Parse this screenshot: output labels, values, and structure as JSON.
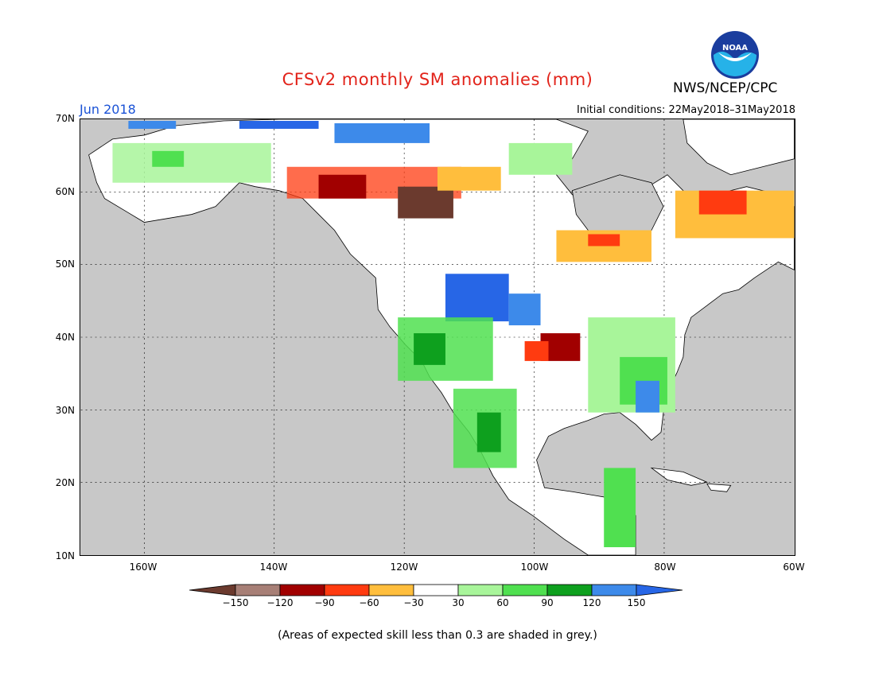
{
  "header": {
    "title": "CFSv2 monthly SM anomalies (mm)",
    "month": "Jun 2018",
    "initial_conditions": "Initial conditions: 22May2018–31May2018",
    "agency": "NWS/NCEP/CPC",
    "logo_text": "NOAA"
  },
  "map": {
    "lat_labels": [
      "70N",
      "60N",
      "50N",
      "40N",
      "30N",
      "20N",
      "10N"
    ],
    "lon_labels": [
      "160W",
      "140W",
      "120W",
      "100W",
      "80W",
      "60W"
    ],
    "ocean_color": "#c8c8c8",
    "land_color": "#ffffff",
    "gridlines": "dotted"
  },
  "legend": {
    "labels": [
      "−150",
      "−120",
      "−90",
      "−60",
      "−30",
      "30",
      "60",
      "90",
      "120",
      "150"
    ],
    "colors": [
      "#6b3a2e",
      "#a77f76",
      "#a10000",
      "#ff3b10",
      "#ffbe3d",
      "#ffffff",
      "#a8f59a",
      "#50e050",
      "#0ea01e",
      "#3d8aea",
      "#2766e6"
    ]
  },
  "footer": {
    "note": "(Areas of expected skill less than 0.3 are shaded in grey.)"
  }
}
